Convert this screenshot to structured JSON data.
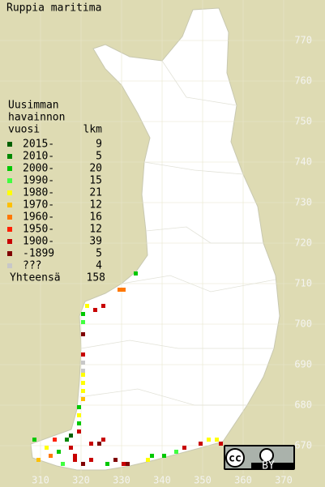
{
  "title": "Ruppia maritima",
  "legend": {
    "heading": [
      "Uusimman",
      "havainnon",
      "vuosi"
    ],
    "count_heading": "lkm",
    "entries": [
      {
        "label": "2015-",
        "count": 9,
        "color": "#006000"
      },
      {
        "label": "2010-",
        "count": 5,
        "color": "#008800"
      },
      {
        "label": "2000-",
        "count": 20,
        "color": "#00c800"
      },
      {
        "label": "1990-",
        "count": 15,
        "color": "#40ff40"
      },
      {
        "label": "1980-",
        "count": 21,
        "color": "#ffff00"
      },
      {
        "label": "1970-",
        "count": 12,
        "color": "#ffc000"
      },
      {
        "label": "1960-",
        "count": 16,
        "color": "#ff7800"
      },
      {
        "label": "1950-",
        "count": 12,
        "color": "#ff2000"
      },
      {
        "label": "1900-",
        "count": 39,
        "color": "#c80000"
      },
      {
        "label": "-1899",
        "count": 5,
        "color": "#800000"
      },
      {
        "label": "???",
        "count": 4,
        "color": "#c8c8c8"
      }
    ],
    "total_label": "Yhteensä",
    "total": 158
  },
  "grid": {
    "x_labels": [
      310,
      320,
      330,
      340,
      350,
      360,
      370
    ],
    "y_labels": [
      670,
      680,
      690,
      700,
      710,
      720,
      730,
      740,
      750,
      760,
      770
    ]
  },
  "squares": [
    [
      333,
      712,
      2
    ],
    [
      329,
      708,
      6
    ],
    [
      330,
      708,
      6
    ],
    [
      321,
      704,
      4
    ],
    [
      323,
      703,
      8
    ],
    [
      325,
      704,
      8
    ],
    [
      320,
      702,
      2
    ],
    [
      320,
      700,
      3
    ],
    [
      320,
      697,
      9
    ],
    [
      320,
      692,
      8
    ],
    [
      320,
      690,
      10
    ],
    [
      320,
      688,
      10
    ],
    [
      320,
      687,
      4
    ],
    [
      320,
      685,
      4
    ],
    [
      320,
      683,
      4
    ],
    [
      320,
      681,
      5
    ],
    [
      319,
      679,
      2
    ],
    [
      319,
      677,
      4
    ],
    [
      319,
      675,
      2
    ],
    [
      319,
      673,
      8
    ],
    [
      308,
      671,
      2
    ],
    [
      311,
      669,
      4
    ],
    [
      312,
      667,
      6
    ],
    [
      314,
      668,
      2
    ],
    [
      316,
      671,
      1
    ],
    [
      317,
      669,
      8
    ],
    [
      318,
      666,
      8
    ],
    [
      318,
      667,
      8
    ],
    [
      320,
      665,
      9
    ],
    [
      322,
      670,
      8
    ],
    [
      324,
      670,
      9
    ],
    [
      325,
      671,
      8
    ],
    [
      315,
      665,
      3
    ],
    [
      326,
      665,
      2
    ],
    [
      330,
      665,
      8
    ],
    [
      331,
      665,
      9
    ],
    [
      336,
      666,
      4
    ],
    [
      337,
      667,
      2
    ],
    [
      340,
      667,
      2
    ],
    [
      343,
      668,
      3
    ],
    [
      345,
      669,
      8
    ],
    [
      349,
      670,
      8
    ],
    [
      351,
      671,
      4
    ],
    [
      353,
      671,
      4
    ],
    [
      354,
      670,
      8
    ],
    [
      317,
      672,
      0
    ],
    [
      313,
      671,
      7
    ],
    [
      309,
      666,
      5
    ],
    [
      322,
      666,
      8
    ],
    [
      328,
      666,
      9
    ]
  ]
}
